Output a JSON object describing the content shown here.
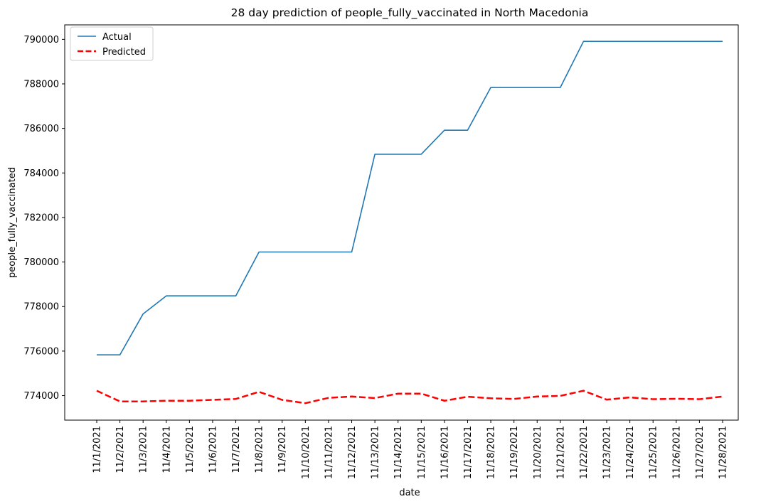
{
  "chart_data": {
    "type": "line",
    "title": "28 day prediction of people_fully_vaccinated in North Macedonia",
    "xlabel": "date",
    "ylabel": "people_fully_vaccinated",
    "ylim": [
      772900,
      790650
    ],
    "yticks": [
      774000,
      776000,
      778000,
      780000,
      782000,
      784000,
      786000,
      788000,
      790000
    ],
    "grid": false,
    "legend_position": "top-left",
    "x": [
      "11/1/2021",
      "11/2/2021",
      "11/3/2021",
      "11/4/2021",
      "11/5/2021",
      "11/6/2021",
      "11/7/2021",
      "11/8/2021",
      "11/9/2021",
      "11/10/2021",
      "11/11/2021",
      "11/12/2021",
      "11/13/2021",
      "11/14/2021",
      "11/15/2021",
      "11/16/2021",
      "11/17/2021",
      "11/18/2021",
      "11/19/2021",
      "11/20/2021",
      "11/21/2021",
      "11/22/2021",
      "11/23/2021",
      "11/24/2021",
      "11/25/2021",
      "11/26/2021",
      "11/27/2021",
      "11/28/2021"
    ],
    "series": [
      {
        "name": "Actual",
        "color": "#1f77b4",
        "style": "solid",
        "values": [
          775830,
          775830,
          777670,
          778480,
          778480,
          778480,
          778480,
          780450,
          780450,
          780450,
          780450,
          780450,
          784840,
          784840,
          784840,
          785920,
          785920,
          787840,
          787840,
          787840,
          787840,
          789910,
          789910,
          789910,
          789910,
          789910,
          789910,
          789910
        ]
      },
      {
        "name": "Predicted",
        "color": "#ff0000",
        "style": "dashed",
        "values": [
          774220,
          773740,
          773740,
          773770,
          773770,
          773810,
          773850,
          774170,
          773810,
          773660,
          773900,
          773960,
          773890,
          774090,
          774090,
          773770,
          773950,
          773880,
          773850,
          773960,
          773990,
          774220,
          773820,
          773920,
          773840,
          773860,
          773840,
          773960
        ]
      }
    ]
  }
}
